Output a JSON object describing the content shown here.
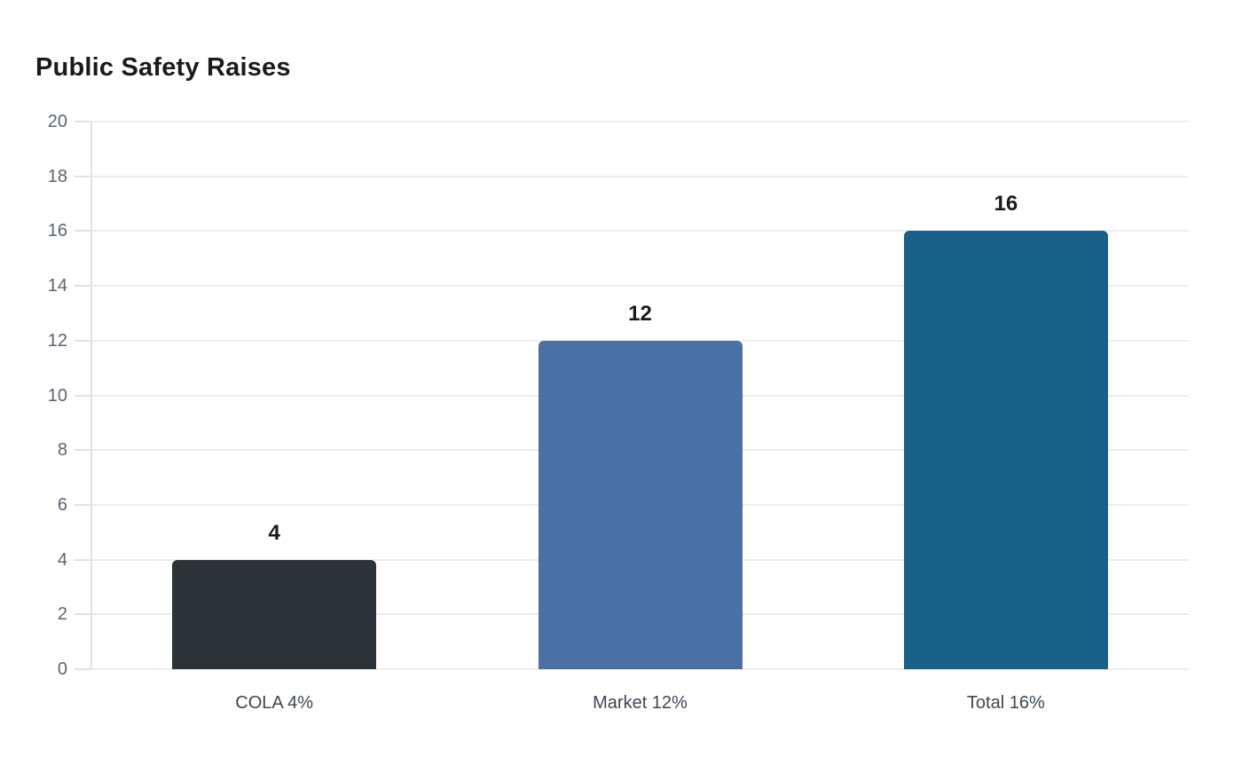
{
  "page": {
    "background_color": "#ffffff"
  },
  "chart_data": {
    "type": "bar",
    "title": "Public Safety Raises",
    "categories": [
      "COLA 4%",
      "Market 12%",
      "Total 16%"
    ],
    "values": [
      4,
      12,
      16
    ],
    "value_labels": [
      "4",
      "12",
      "16"
    ],
    "bar_colors": [
      "#2b3338",
      "#4b70a6",
      "#1a6189"
    ],
    "xlabel": "",
    "ylabel": "",
    "ylim": [
      0,
      20
    ],
    "ytick_step": 2,
    "ytick_labels": [
      "0",
      "2",
      "4",
      "6",
      "8",
      "10",
      "12",
      "14",
      "16",
      "18",
      "20"
    ],
    "grid": "horizontal",
    "legend": "none",
    "style_colors": {
      "title_text": "#1a1a1a",
      "value_label_text": "#1a1a1a",
      "tick_label_text": "#5b6370",
      "category_label_text": "#3d4752",
      "gridline": "#ededed",
      "axis_line": "#e2e2e2",
      "background": "#ffffff"
    }
  }
}
